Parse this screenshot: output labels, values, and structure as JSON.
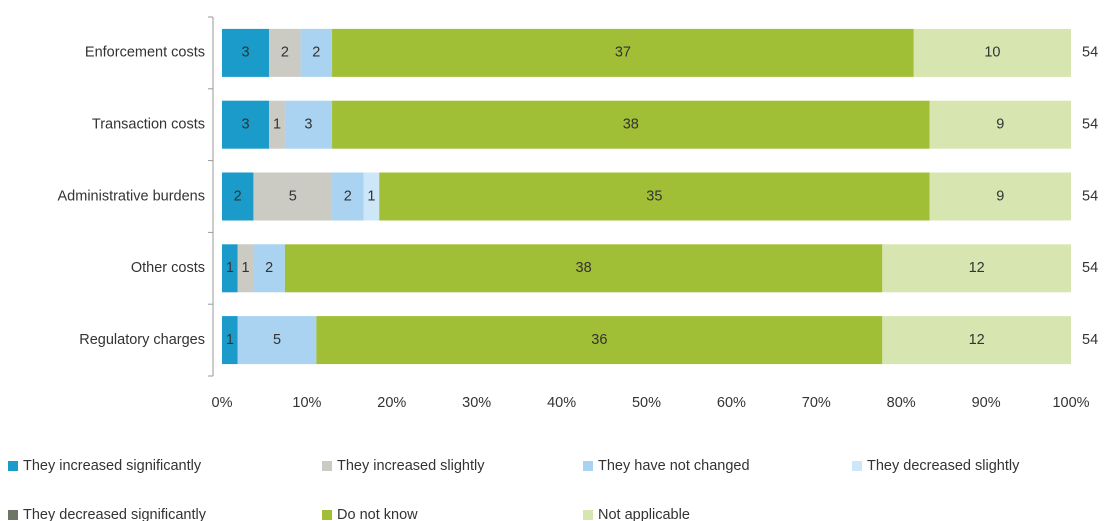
{
  "chart_data": {
    "type": "stacked_bar_100_horizontal",
    "categories": [
      "Enforcement costs",
      "Transaction costs",
      "Administrative burdens",
      "Other costs",
      "Regulatory charges"
    ],
    "series": [
      {
        "name": "They increased significantly",
        "color": "#1a9bc9",
        "values": [
          3,
          3,
          2,
          1,
          1
        ]
      },
      {
        "name": "They increased slightly",
        "color": "#cbcbc3",
        "values": [
          2,
          1,
          5,
          1,
          0
        ]
      },
      {
        "name": "They have not changed",
        "color": "#a9d3f1",
        "values": [
          2,
          3,
          2,
          2,
          5
        ]
      },
      {
        "name": "They decreased slightly",
        "color": "#cde7f9",
        "values": [
          0,
          0,
          1,
          0,
          0
        ]
      },
      {
        "name": "They decreased significantly",
        "color": "#6f7566",
        "values": [
          0,
          0,
          0,
          0,
          0
        ]
      },
      {
        "name": "Do not know",
        "color": "#a1bf36",
        "values": [
          37,
          38,
          35,
          38,
          36
        ]
      },
      {
        "name": "Not applicable",
        "color": "#d7e5b0",
        "values": [
          10,
          9,
          9,
          12,
          12
        ]
      }
    ],
    "totals": [
      54,
      54,
      54,
      54,
      54
    ],
    "xlim": [
      0,
      100
    ],
    "xticks": [
      {
        "value": 0,
        "label": "0%"
      },
      {
        "value": 10,
        "label": "10%"
      },
      {
        "value": 20,
        "label": "20%"
      },
      {
        "value": 30,
        "label": "30%"
      },
      {
        "value": 40,
        "label": "40%"
      },
      {
        "value": 50,
        "label": "50%"
      },
      {
        "value": 60,
        "label": "60%"
      },
      {
        "value": 70,
        "label": "70%"
      },
      {
        "value": 80,
        "label": "80%"
      },
      {
        "value": 90,
        "label": "90%"
      },
      {
        "value": 100,
        "label": "100%"
      }
    ],
    "legend": "bottom"
  }
}
